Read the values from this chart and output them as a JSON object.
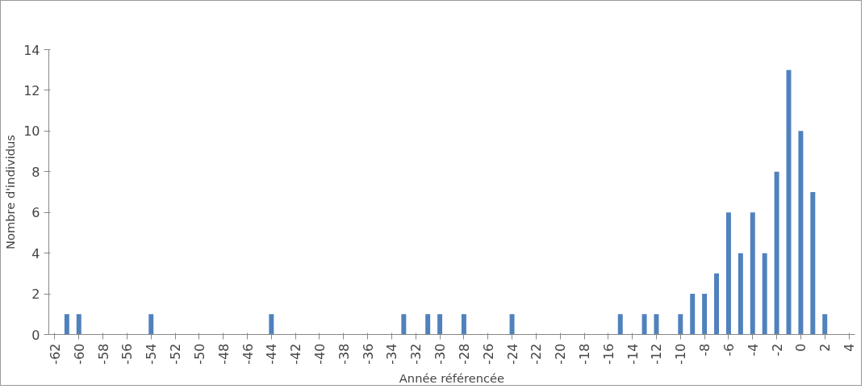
{
  "chart_data": {
    "type": "bar",
    "xlabel": "Année référencée",
    "ylabel": "Nombre d'individus",
    "categories": [
      "-62",
      null,
      "-60",
      null,
      "-58",
      null,
      "-56",
      null,
      "-54",
      null,
      "-52",
      null,
      "-50",
      null,
      "-48",
      null,
      "-46",
      null,
      "-44",
      null,
      "-42",
      null,
      "-40",
      null,
      "-38",
      null,
      "-36",
      null,
      "-34",
      null,
      "-32",
      null,
      "-30",
      null,
      "-28",
      null,
      "-26",
      null,
      "-24",
      null,
      "-22",
      null,
      "-20",
      null,
      "-18",
      null,
      "-16",
      null,
      "-14",
      null,
      "-12",
      null,
      "-10",
      null,
      "-8",
      null,
      "-6",
      null,
      "-4",
      null,
      "-2",
      null,
      "0",
      null,
      "2",
      null,
      "4"
    ],
    "values": [
      0,
      1,
      1,
      0,
      0,
      0,
      0,
      0,
      1,
      0,
      0,
      0,
      0,
      0,
      0,
      0,
      0,
      0,
      1,
      0,
      0,
      0,
      0,
      0,
      0,
      0,
      0,
      0,
      0,
      1,
      0,
      1,
      1,
      0,
      1,
      0,
      0,
      0,
      1,
      0,
      0,
      0,
      0,
      0,
      0,
      0,
      0,
      1,
      0,
      1,
      1,
      0,
      1,
      2,
      2,
      3,
      6,
      4,
      6,
      4,
      8,
      13,
      10,
      7,
      1,
      0,
      0
    ],
    "color": "#4f81bd",
    "ylim": [
      0,
      14
    ],
    "yticks": [
      0,
      2,
      4,
      6,
      8,
      10,
      12,
      14
    ],
    "grid": false,
    "legend": false
  }
}
